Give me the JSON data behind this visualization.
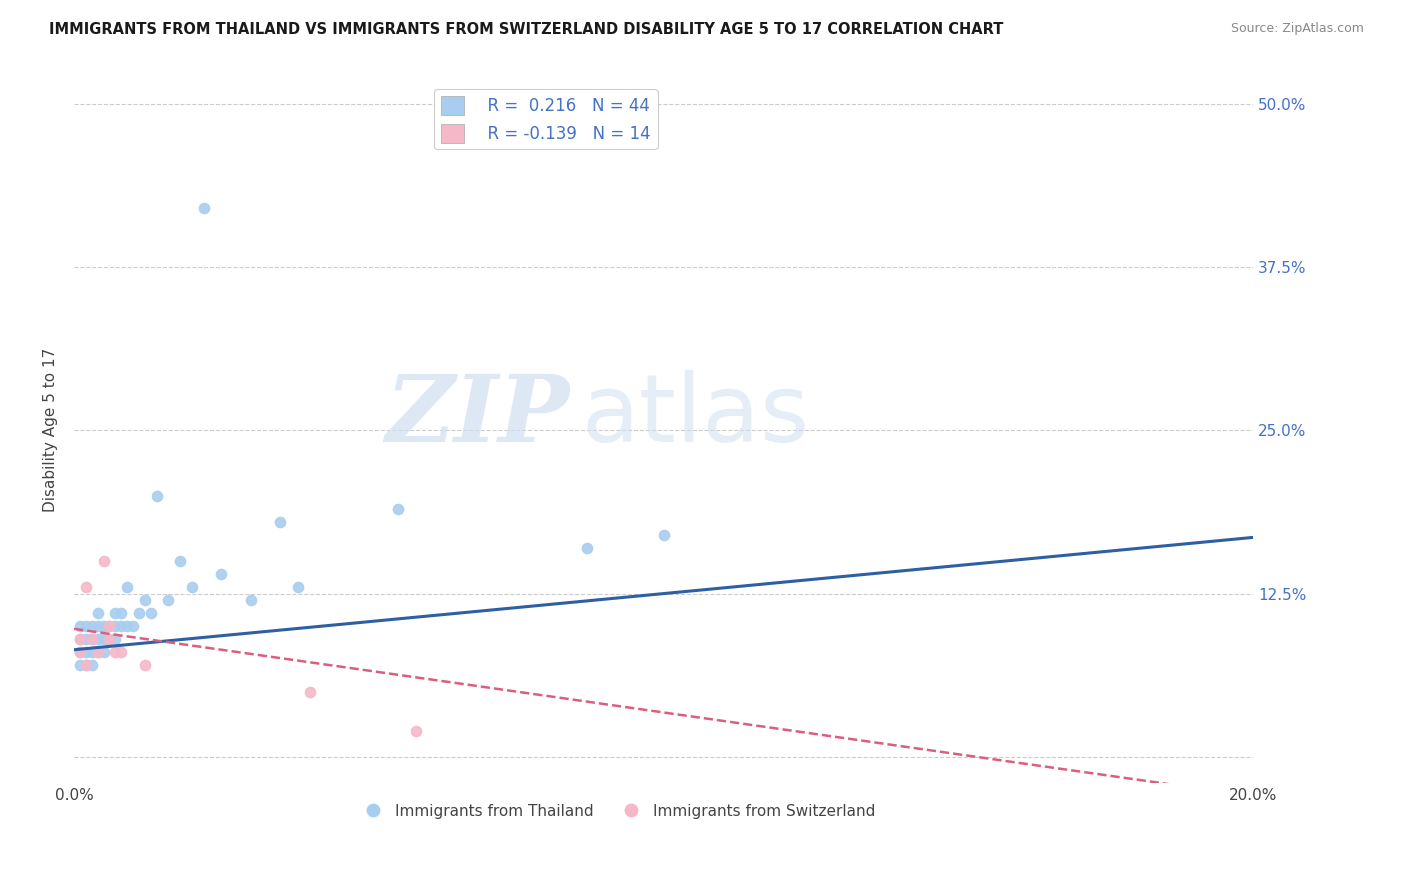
{
  "title": "IMMIGRANTS FROM THAILAND VS IMMIGRANTS FROM SWITZERLAND DISABILITY AGE 5 TO 17 CORRELATION CHART",
  "source": "Source: ZipAtlas.com",
  "ylabel": "Disability Age 5 to 17",
  "xlim": [
    0.0,
    0.2
  ],
  "ylim": [
    -0.02,
    0.52
  ],
  "xticks": [
    0.0,
    0.05,
    0.1,
    0.15,
    0.2
  ],
  "xtick_labels": [
    "0.0%",
    "",
    "",
    "",
    "20.0%"
  ],
  "ytick_labels": [
    "50.0%",
    "37.5%",
    "25.0%",
    "12.5%",
    ""
  ],
  "yticks": [
    0.5,
    0.375,
    0.25,
    0.125,
    0.0
  ],
  "legend_label1": "Immigrants from Thailand",
  "legend_label2": "Immigrants from Switzerland",
  "R1": 0.216,
  "N1": 44,
  "R2": -0.139,
  "N2": 14,
  "color1": "#A8CEEF",
  "color2": "#F5B8C8",
  "line_color1": "#2E5FA3",
  "line_color2": "#D95F7F",
  "watermark_zip": "ZIP",
  "watermark_atlas": "atlas",
  "thailand_x": [
    0.001,
    0.001,
    0.001,
    0.001,
    0.002,
    0.002,
    0.002,
    0.002,
    0.003,
    0.003,
    0.003,
    0.003,
    0.004,
    0.004,
    0.004,
    0.004,
    0.005,
    0.005,
    0.005,
    0.006,
    0.006,
    0.007,
    0.007,
    0.007,
    0.008,
    0.008,
    0.009,
    0.009,
    0.01,
    0.011,
    0.012,
    0.013,
    0.014,
    0.016,
    0.018,
    0.02,
    0.022,
    0.025,
    0.03,
    0.035,
    0.038,
    0.055,
    0.087,
    0.1
  ],
  "thailand_y": [
    0.07,
    0.08,
    0.09,
    0.1,
    0.07,
    0.08,
    0.09,
    0.1,
    0.07,
    0.08,
    0.09,
    0.1,
    0.08,
    0.09,
    0.1,
    0.11,
    0.08,
    0.09,
    0.1,
    0.09,
    0.1,
    0.09,
    0.1,
    0.11,
    0.1,
    0.11,
    0.1,
    0.13,
    0.1,
    0.11,
    0.12,
    0.11,
    0.2,
    0.12,
    0.15,
    0.13,
    0.42,
    0.14,
    0.12,
    0.18,
    0.13,
    0.19,
    0.16,
    0.17
  ],
  "switzerland_x": [
    0.001,
    0.001,
    0.002,
    0.002,
    0.003,
    0.004,
    0.005,
    0.006,
    0.006,
    0.007,
    0.008,
    0.012,
    0.04,
    0.058
  ],
  "switzerland_y": [
    0.08,
    0.09,
    0.13,
    0.07,
    0.09,
    0.08,
    0.15,
    0.09,
    0.1,
    0.08,
    0.08,
    0.07,
    0.05,
    0.02
  ],
  "background_color": "#FFFFFF",
  "grid_color": "#CCCCCC",
  "trendline1_x0": 0.0,
  "trendline1_y0": 0.082,
  "trendline1_x1": 0.2,
  "trendline1_y1": 0.168,
  "trendline2_x0": 0.0,
  "trendline2_y0": 0.098,
  "trendline2_x1": 0.2,
  "trendline2_y1": -0.03
}
